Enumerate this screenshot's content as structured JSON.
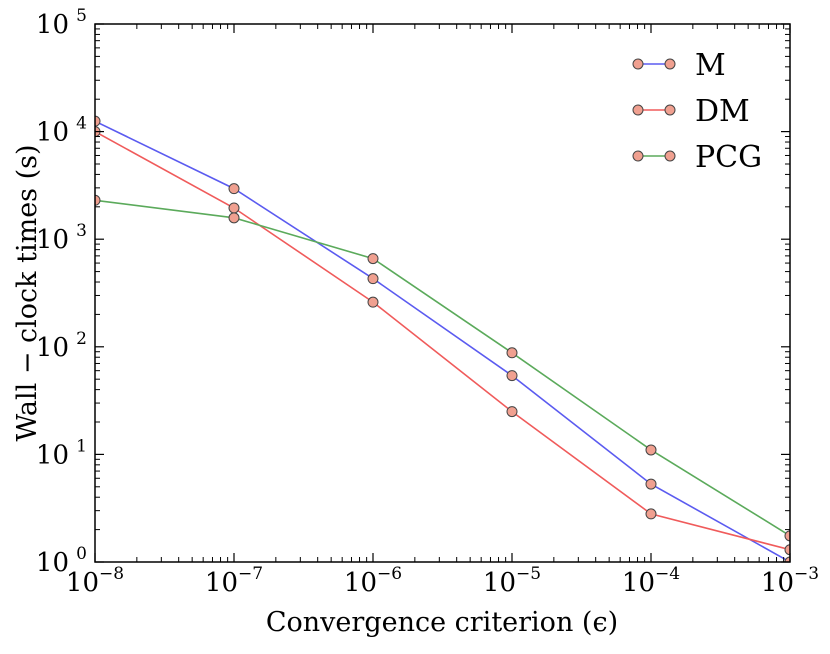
{
  "chart_data": {
    "type": "line",
    "xlabel": "Convergence criterion (ϵ)",
    "ylabel": "Wall − clock times (s)",
    "xscale": "log",
    "yscale": "log",
    "xlim": [
      1e-08,
      0.001
    ],
    "ylim": [
      1,
      100000
    ],
    "x_ticks": [
      {
        "base": "10",
        "exp": "−8",
        "value": 1e-08
      },
      {
        "base": "10",
        "exp": "−7",
        "value": 1e-07
      },
      {
        "base": "10",
        "exp": "−6",
        "value": 1e-06
      },
      {
        "base": "10",
        "exp": "−5",
        "value": 1e-05
      },
      {
        "base": "10",
        "exp": "−4",
        "value": 0.0001
      },
      {
        "base": "10",
        "exp": "−3",
        "value": 0.001
      }
    ],
    "y_ticks": [
      {
        "base": "10",
        "exp": "0",
        "value": 1
      },
      {
        "base": "10",
        "exp": "1",
        "value": 10
      },
      {
        "base": "10",
        "exp": "2",
        "value": 100
      },
      {
        "base": "10",
        "exp": "3",
        "value": 1000
      },
      {
        "base": "10",
        "exp": "4",
        "value": 10000
      },
      {
        "base": "10",
        "exp": "5",
        "value": 100000
      }
    ],
    "x": [
      1e-08,
      1e-07,
      1e-06,
      1e-05,
      0.0001,
      0.001
    ],
    "series": [
      {
        "name": "M",
        "color": "#5b5bf0",
        "values": [
          12500,
          2950,
          430,
          54,
          5.3,
          1.0
        ]
      },
      {
        "name": "DM",
        "color": "#f05b5b",
        "values": [
          10000,
          1950,
          260,
          25,
          2.8,
          1.3
        ]
      },
      {
        "name": "PCG",
        "color": "#5baa5b",
        "values": [
          2300,
          1580,
          660,
          88,
          11,
          1.75
        ]
      }
    ],
    "marker_color": "#f0a090",
    "legend_position": "top-right",
    "grid": false
  }
}
